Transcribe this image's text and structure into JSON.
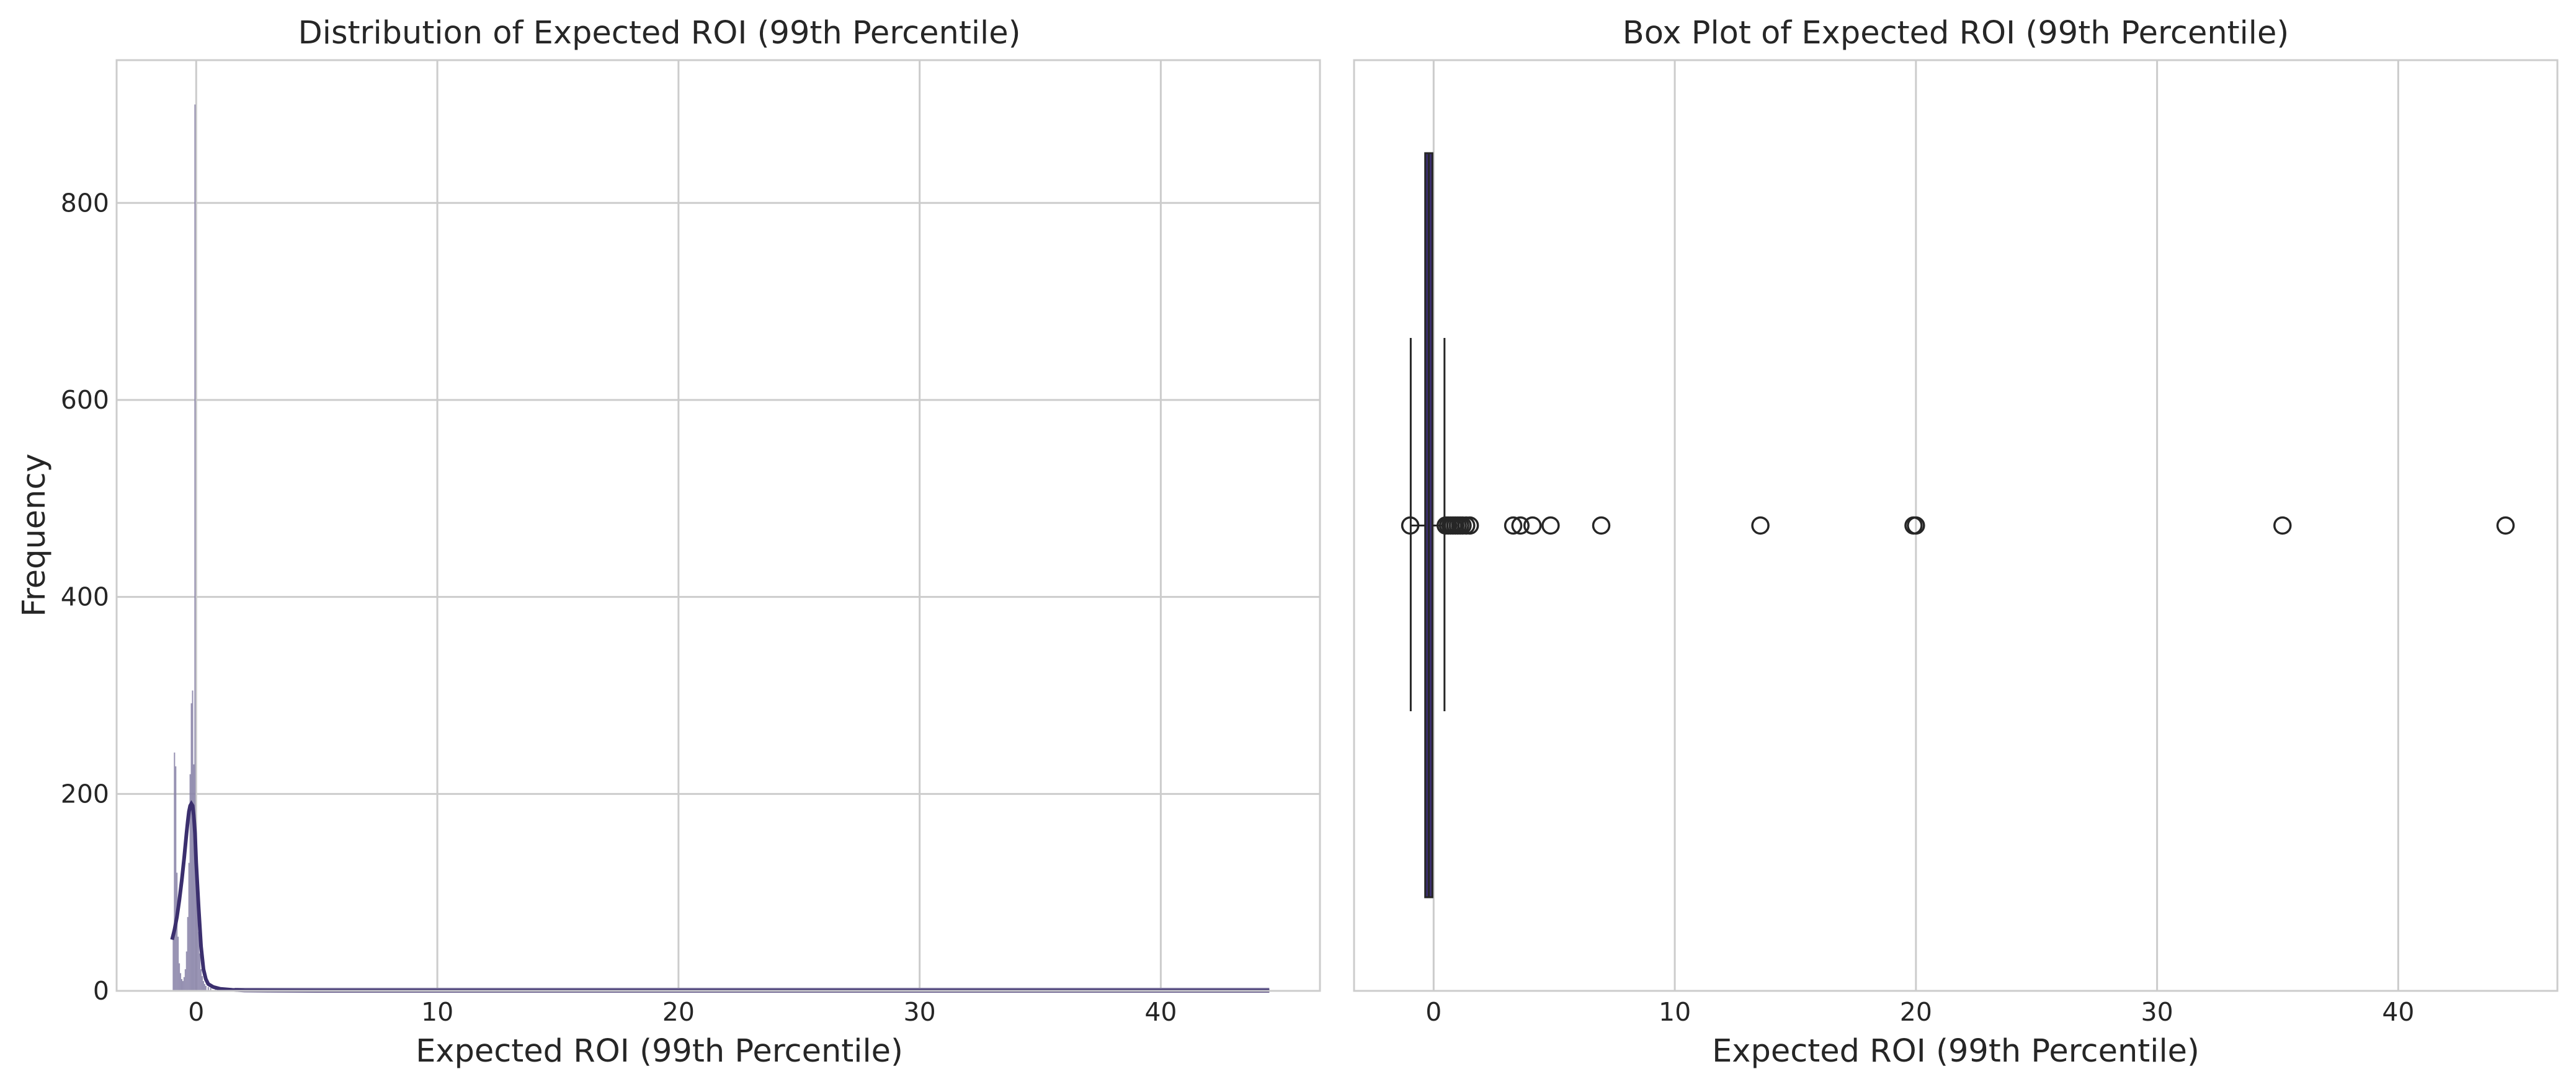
{
  "figure": {
    "background": "#ffffff",
    "grid_color": "#cccccc",
    "spine_color": "#cccccc"
  },
  "chart_data": [
    {
      "type": "histogram",
      "title": "Distribution of Expected ROI (99th Percentile)",
      "xlabel": "Expected ROI (99th Percentile)",
      "ylabel": "Frequency",
      "xlim": [
        -3.3,
        46.6
      ],
      "ylim": [
        0,
        945
      ],
      "xticks": [
        0,
        10,
        20,
        30,
        40
      ],
      "yticks": [
        0,
        200,
        400,
        600,
        800
      ],
      "grid": true,
      "bar_color": "#8a84a8",
      "kde_color": "#3b2f6e",
      "bins": [
        {
          "x": -0.95,
          "count": 60
        },
        {
          "x": -0.9,
          "count": 242
        },
        {
          "x": -0.85,
          "count": 228
        },
        {
          "x": -0.8,
          "count": 120
        },
        {
          "x": -0.75,
          "count": 55
        },
        {
          "x": -0.7,
          "count": 28
        },
        {
          "x": -0.65,
          "count": 18
        },
        {
          "x": -0.6,
          "count": 12
        },
        {
          "x": -0.55,
          "count": 10
        },
        {
          "x": -0.5,
          "count": 14
        },
        {
          "x": -0.45,
          "count": 22
        },
        {
          "x": -0.4,
          "count": 40
        },
        {
          "x": -0.35,
          "count": 75
        },
        {
          "x": -0.3,
          "count": 130
        },
        {
          "x": -0.25,
          "count": 220
        },
        {
          "x": -0.2,
          "count": 292
        },
        {
          "x": -0.15,
          "count": 305
        },
        {
          "x": -0.1,
          "count": 230
        },
        {
          "x": -0.05,
          "count": 900
        },
        {
          "x": 0.0,
          "count": 150
        },
        {
          "x": 0.05,
          "count": 95
        },
        {
          "x": 0.1,
          "count": 60
        },
        {
          "x": 0.15,
          "count": 38
        },
        {
          "x": 0.2,
          "count": 22
        },
        {
          "x": 0.25,
          "count": 15
        },
        {
          "x": 0.3,
          "count": 10
        },
        {
          "x": 0.35,
          "count": 7
        },
        {
          "x": 0.4,
          "count": 5
        },
        {
          "x": 0.5,
          "count": 4
        },
        {
          "x": 0.6,
          "count": 3
        },
        {
          "x": 0.8,
          "count": 2
        },
        {
          "x": 1.0,
          "count": 2
        },
        {
          "x": 1.2,
          "count": 1
        },
        {
          "x": 1.5,
          "count": 1
        }
      ],
      "kde": {
        "x": [
          -1.0,
          -0.9,
          -0.8,
          -0.7,
          -0.6,
          -0.5,
          -0.4,
          -0.35,
          -0.3,
          -0.25,
          -0.2,
          -0.15,
          -0.1,
          -0.05,
          0.0,
          0.1,
          0.2,
          0.3,
          0.4,
          0.5,
          0.7,
          1.0,
          1.5,
          2.0,
          3.0,
          5.0,
          10.0,
          20.0,
          30.0,
          40.0,
          44.5
        ],
        "y": [
          52,
          62,
          75,
          92,
          112,
          135,
          160,
          172,
          182,
          188,
          190,
          188,
          178,
          160,
          130,
          85,
          45,
          22,
          12,
          7,
          4,
          2,
          1,
          0.5,
          0.3,
          0.2,
          0.1,
          0.1,
          0.1,
          0.1,
          0.1
        ]
      }
    },
    {
      "type": "box",
      "title": "Box Plot of Expected ROI (99th Percentile)",
      "xlabel": "Expected ROI (99th Percentile)",
      "xlim": [
        -3.3,
        46.6
      ],
      "xticks": [
        0,
        10,
        20,
        30,
        40
      ],
      "grid": true,
      "box_color": "#3b2f6e",
      "whisker_color": "#262626",
      "q1": -0.35,
      "median": -0.2,
      "q3": -0.05,
      "whisker_low": -0.95,
      "whisker_high": 0.45,
      "outliers": [
        -0.97,
        0.5,
        0.6,
        0.7,
        0.8,
        0.9,
        1.0,
        1.1,
        1.2,
        1.35,
        1.5,
        3.3,
        3.6,
        4.1,
        4.85,
        6.95,
        13.55,
        19.9,
        20.0,
        35.2,
        44.45
      ]
    }
  ]
}
